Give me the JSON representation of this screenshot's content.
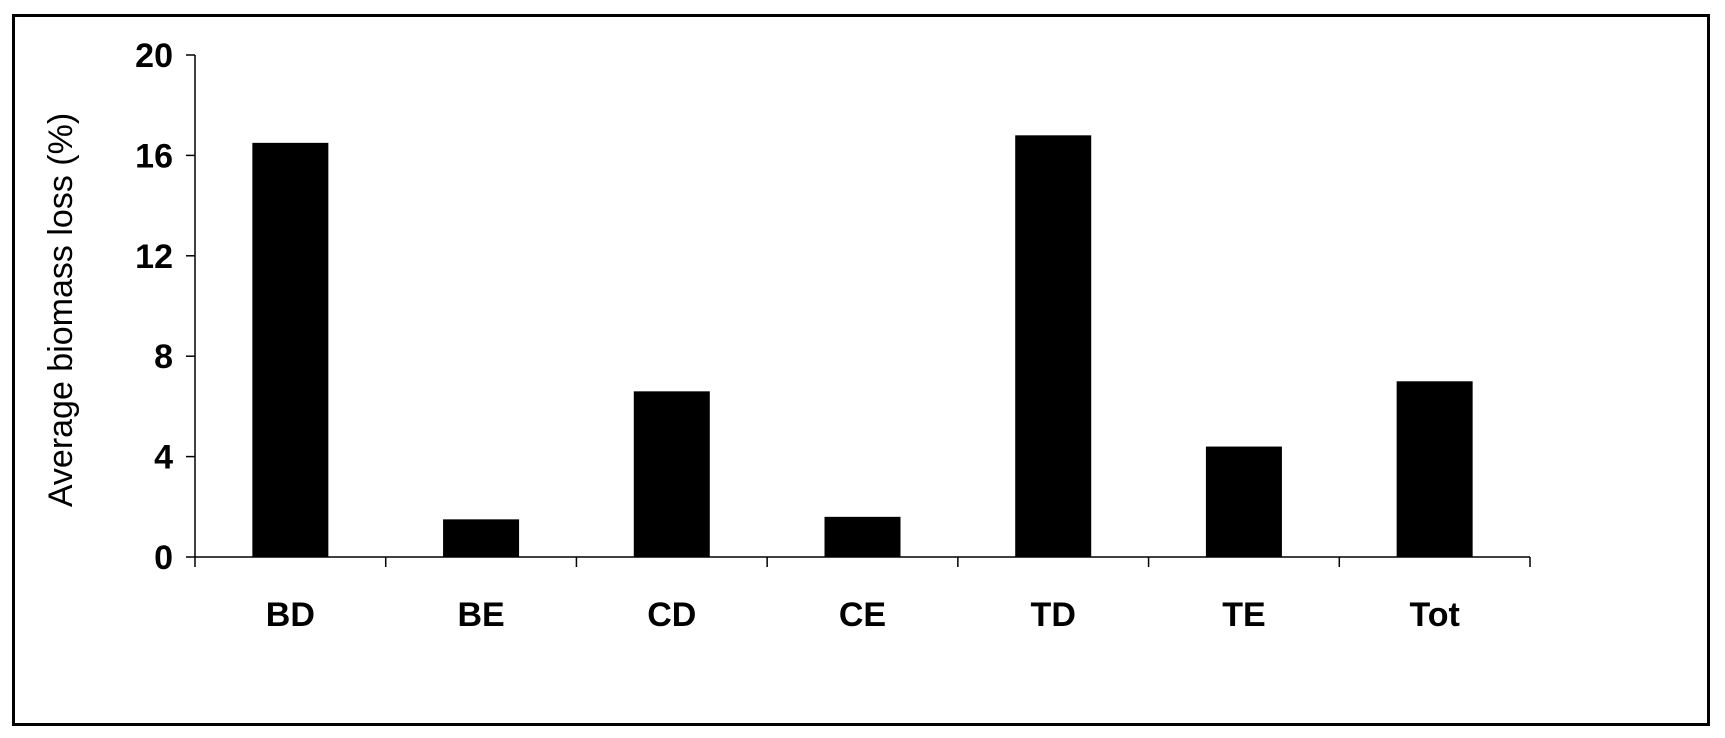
{
  "chart_data": {
    "type": "bar",
    "categories": [
      "BD",
      "BE",
      "CD",
      "CE",
      "TD",
      "TE",
      "Tot"
    ],
    "values": [
      16.5,
      1.5,
      6.6,
      1.6,
      16.8,
      4.4,
      7.0
    ],
    "title": "",
    "xlabel": "",
    "ylabel": "Average biomass loss (%)",
    "ylim": [
      0,
      20
    ],
    "yticks": [
      0,
      4,
      8,
      12,
      16,
      20
    ],
    "ytick_labels": [
      "0",
      "4",
      "8",
      "12",
      "16",
      "20"
    ],
    "grid": false,
    "legend": "none",
    "bar_color": "#000000"
  }
}
